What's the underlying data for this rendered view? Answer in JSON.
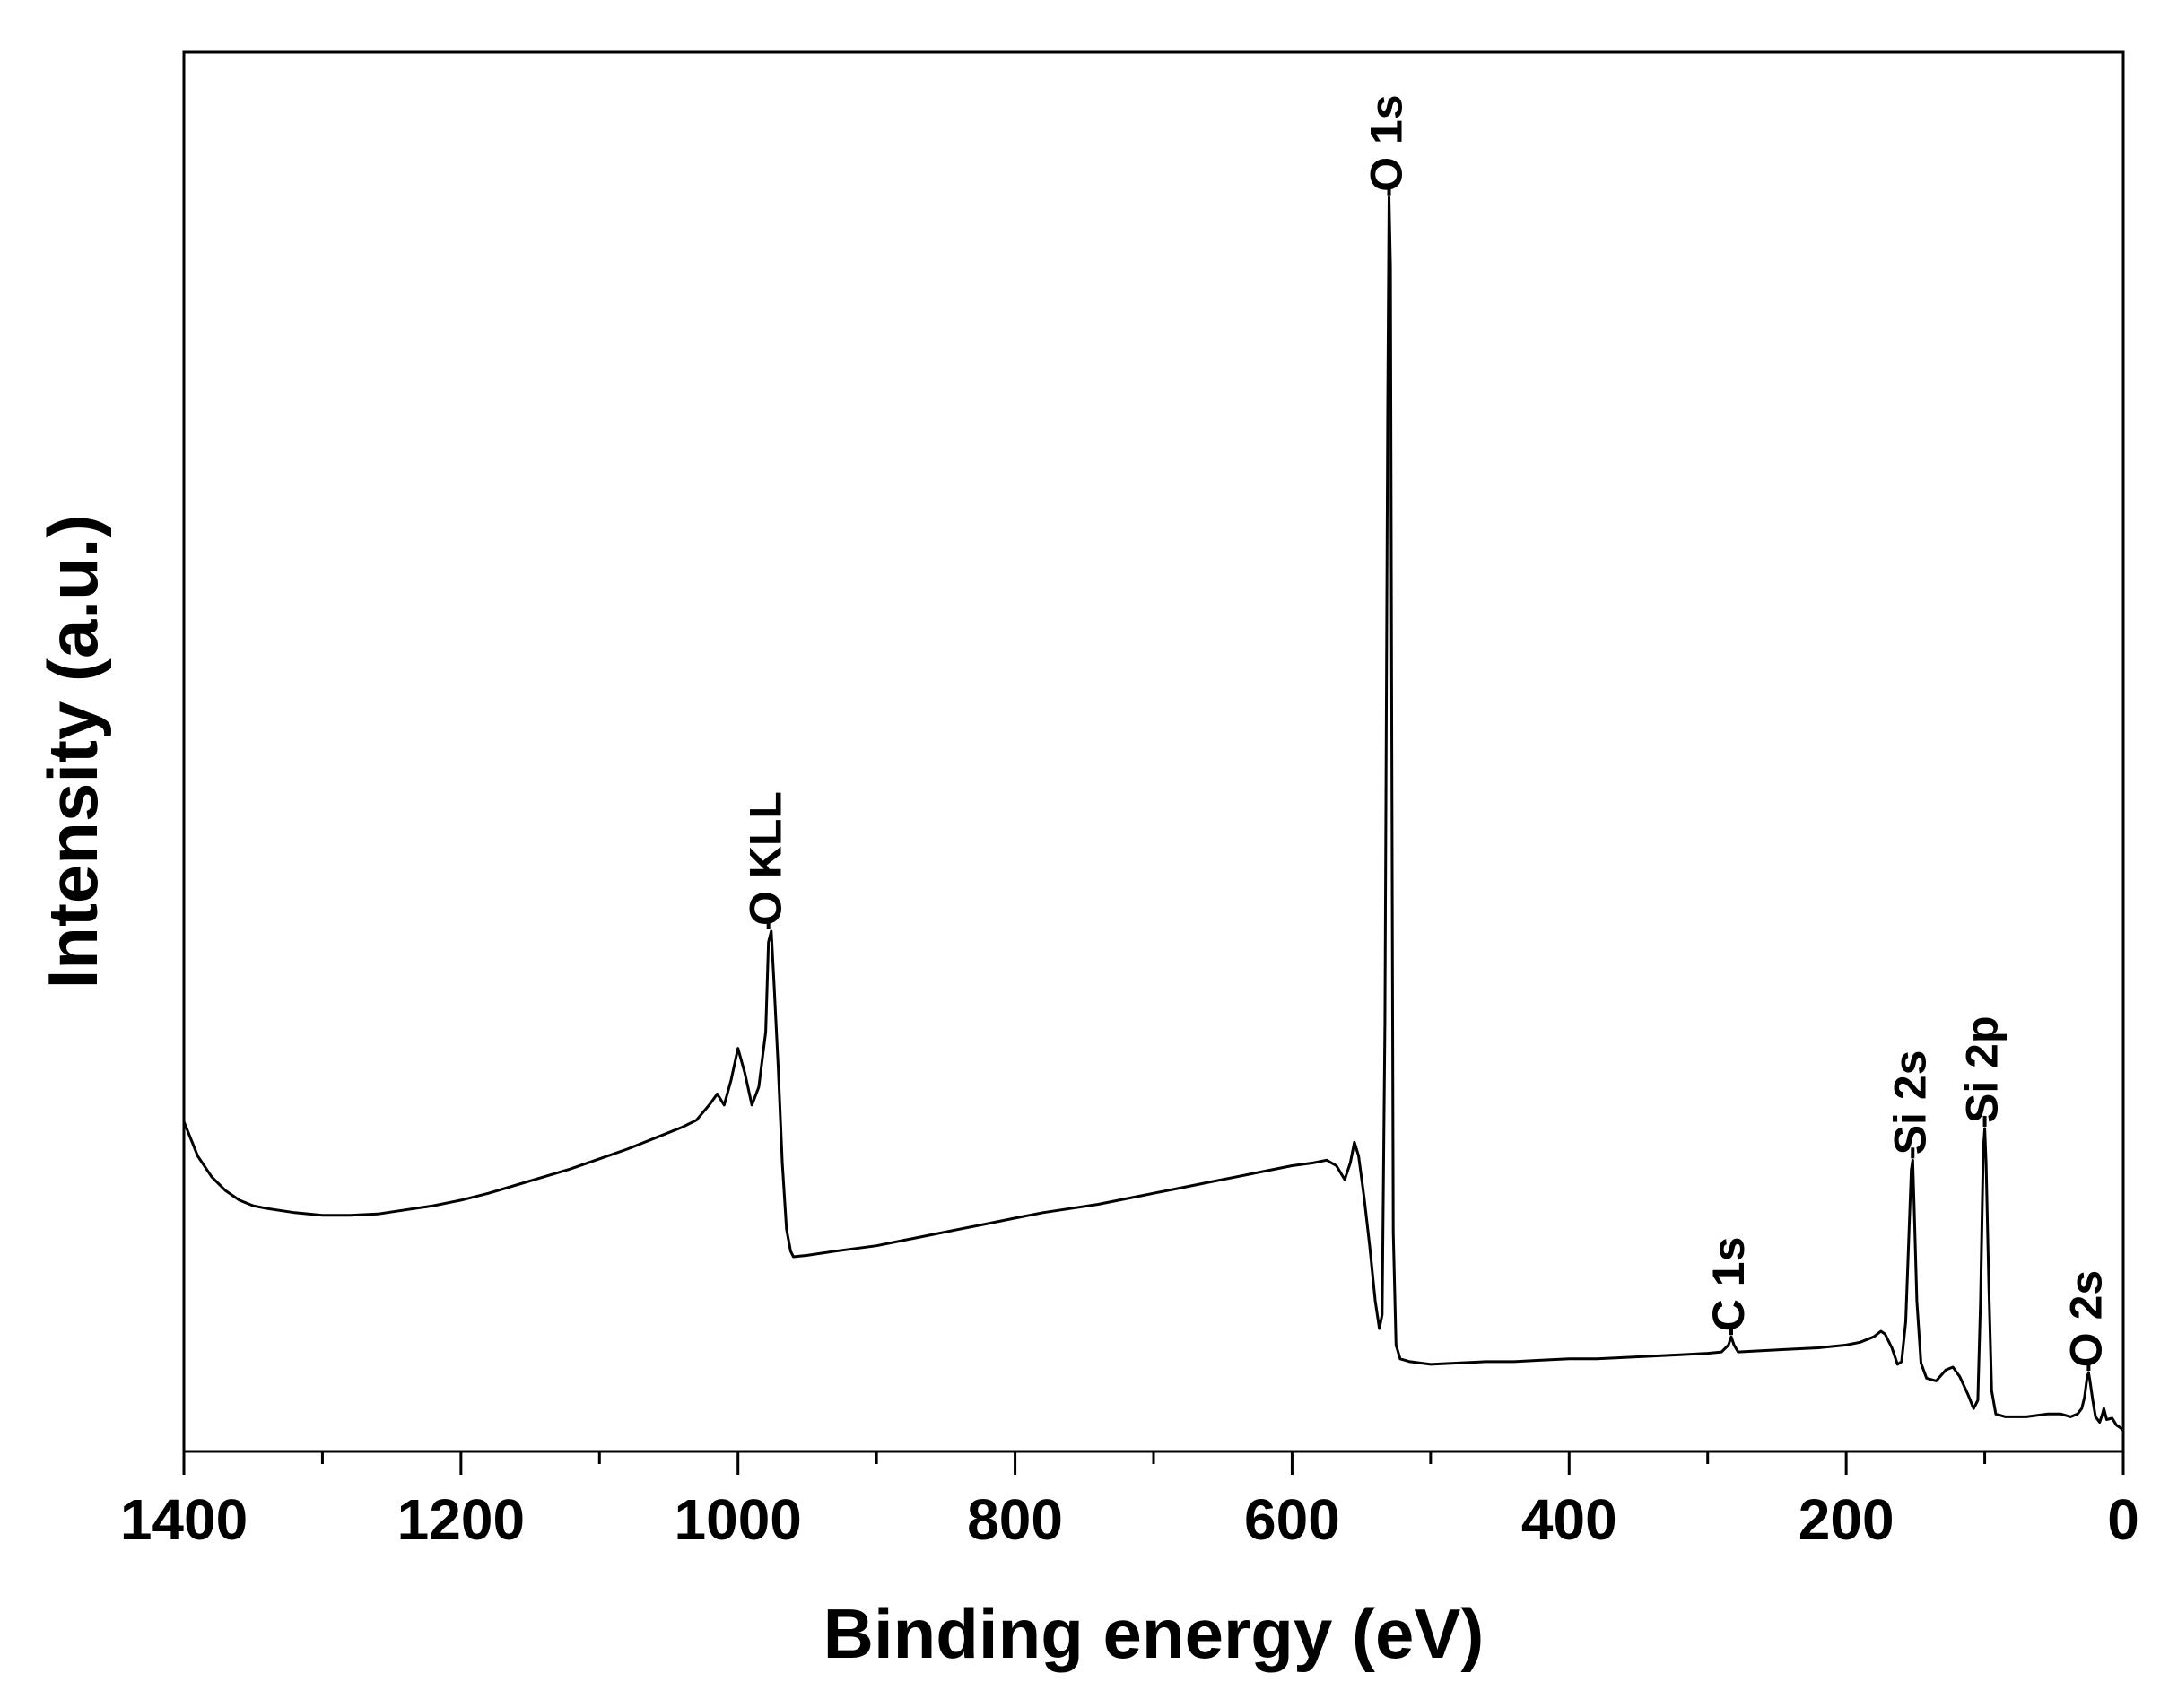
{
  "chart_data": {
    "type": "line",
    "title": "",
    "xlabel": "Binding energy (eV)",
    "ylabel": "Intensity (a.u.)",
    "xlim": [
      1400,
      0
    ],
    "x_reversed": true,
    "ylim": [
      0,
      100
    ],
    "y_ticks_shown": false,
    "x_ticks": [
      1400,
      1200,
      1000,
      800,
      600,
      400,
      200,
      0
    ],
    "x_minor_step": 100,
    "grid": false,
    "legend": "none",
    "line_color": "#000000",
    "series": [
      {
        "points": [
          [
            1400,
            23
          ],
          [
            1390,
            20.5
          ],
          [
            1380,
            19
          ],
          [
            1370,
            18
          ],
          [
            1360,
            17.3
          ],
          [
            1350,
            16.9
          ],
          [
            1340,
            16.7
          ],
          [
            1320,
            16.4
          ],
          [
            1300,
            16.2
          ],
          [
            1280,
            16.2
          ],
          [
            1260,
            16.3
          ],
          [
            1240,
            16.6
          ],
          [
            1220,
            16.9
          ],
          [
            1200,
            17.3
          ],
          [
            1180,
            17.8
          ],
          [
            1160,
            18.4
          ],
          [
            1140,
            19.0
          ],
          [
            1120,
            19.6
          ],
          [
            1100,
            20.3
          ],
          [
            1080,
            21.0
          ],
          [
            1060,
            21.8
          ],
          [
            1040,
            22.6
          ],
          [
            1030,
            23.1
          ],
          [
            1020,
            24.3
          ],
          [
            1015,
            25.0
          ],
          [
            1010,
            24.2
          ],
          [
            1005,
            26.0
          ],
          [
            1000,
            28.3
          ],
          [
            995,
            26.5
          ],
          [
            990,
            24.2
          ],
          [
            985,
            25.5
          ],
          [
            980,
            29.5
          ],
          [
            978,
            36.0
          ],
          [
            976,
            36.8
          ],
          [
            974,
            33.0
          ],
          [
            971,
            27.0
          ],
          [
            968,
            20.0
          ],
          [
            965,
            15.2
          ],
          [
            962,
            13.6
          ],
          [
            960,
            13.2
          ],
          [
            950,
            13.3
          ],
          [
            930,
            13.6
          ],
          [
            900,
            14.0
          ],
          [
            880,
            14.4
          ],
          [
            860,
            14.8
          ],
          [
            840,
            15.2
          ],
          [
            820,
            15.6
          ],
          [
            800,
            16.0
          ],
          [
            780,
            16.4
          ],
          [
            760,
            16.7
          ],
          [
            740,
            17.0
          ],
          [
            720,
            17.4
          ],
          [
            700,
            17.8
          ],
          [
            680,
            18.2
          ],
          [
            660,
            18.6
          ],
          [
            640,
            19.0
          ],
          [
            620,
            19.4
          ],
          [
            600,
            19.8
          ],
          [
            585,
            20.0
          ],
          [
            575,
            20.2
          ],
          [
            568,
            19.8
          ],
          [
            562,
            18.8
          ],
          [
            558,
            20.0
          ],
          [
            555,
            21.5
          ],
          [
            552,
            20.5
          ],
          [
            548,
            17.5
          ],
          [
            544,
            14.0
          ],
          [
            540,
            10.0
          ],
          [
            537,
            8.0
          ],
          [
            535,
            9.0
          ],
          [
            533,
            30.0
          ],
          [
            531,
            75.0
          ],
          [
            530,
            90.0
          ],
          [
            529,
            85.0
          ],
          [
            528,
            50.0
          ],
          [
            527,
            15.0
          ],
          [
            525,
            6.8
          ],
          [
            522,
            5.8
          ],
          [
            515,
            5.6
          ],
          [
            500,
            5.4
          ],
          [
            480,
            5.5
          ],
          [
            460,
            5.6
          ],
          [
            440,
            5.6
          ],
          [
            420,
            5.7
          ],
          [
            400,
            5.8
          ],
          [
            380,
            5.8
          ],
          [
            360,
            5.9
          ],
          [
            340,
            6.0
          ],
          [
            320,
            6.1
          ],
          [
            300,
            6.2
          ],
          [
            290,
            6.3
          ],
          [
            285,
            6.8
          ],
          [
            283,
            7.4
          ],
          [
            281,
            6.8
          ],
          [
            278,
            6.3
          ],
          [
            260,
            6.4
          ],
          [
            240,
            6.5
          ],
          [
            220,
            6.6
          ],
          [
            200,
            6.8
          ],
          [
            190,
            7.0
          ],
          [
            180,
            7.4
          ],
          [
            175,
            7.8
          ],
          [
            172,
            7.6
          ],
          [
            167,
            6.6
          ],
          [
            163,
            5.4
          ],
          [
            160,
            5.6
          ],
          [
            157,
            8.5
          ],
          [
            155,
            14.0
          ],
          [
            153,
            19.5
          ],
          [
            152,
            20.2
          ],
          [
            151,
            17.0
          ],
          [
            149,
            10.0
          ],
          [
            146,
            5.5
          ],
          [
            142,
            4.4
          ],
          [
            135,
            4.2
          ],
          [
            128,
            5.0
          ],
          [
            123,
            5.2
          ],
          [
            118,
            4.5
          ],
          [
            112,
            3.2
          ],
          [
            108,
            2.2
          ],
          [
            105,
            2.8
          ],
          [
            103,
            10.0
          ],
          [
            101,
            21.0
          ],
          [
            100,
            22.5
          ],
          [
            99,
            20.0
          ],
          [
            97,
            11.0
          ],
          [
            95,
            3.5
          ],
          [
            92,
            1.8
          ],
          [
            85,
            1.6
          ],
          [
            70,
            1.6
          ],
          [
            55,
            1.8
          ],
          [
            45,
            1.8
          ],
          [
            38,
            1.6
          ],
          [
            33,
            1.8
          ],
          [
            30,
            2.2
          ],
          [
            28,
            3.0
          ],
          [
            26,
            4.5
          ],
          [
            25,
            4.8
          ],
          [
            24,
            4.2
          ],
          [
            22,
            2.8
          ],
          [
            20,
            1.6
          ],
          [
            17,
            1.2
          ],
          [
            15,
            1.8
          ],
          [
            14,
            2.2
          ],
          [
            12,
            1.4
          ],
          [
            8,
            1.5
          ],
          [
            5,
            1.0
          ],
          [
            2,
            0.8
          ],
          [
            0,
            0.6
          ]
        ]
      }
    ],
    "annotations": [
      {
        "text": "O KLL",
        "x": 978,
        "y": 36.8
      },
      {
        "text": "O 1s",
        "x": 530,
        "y": 90.0
      },
      {
        "text": "C 1s",
        "x": 283,
        "y": 7.4
      },
      {
        "text": "Si 2s",
        "x": 152,
        "y": 20.2
      },
      {
        "text": "Si 2p",
        "x": 100,
        "y": 22.5
      },
      {
        "text": "O 2s",
        "x": 25,
        "y": 4.8
      }
    ]
  }
}
